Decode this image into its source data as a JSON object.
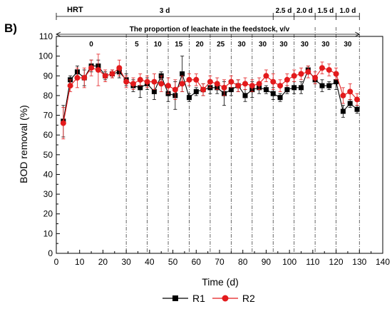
{
  "chart_data": {
    "type": "line",
    "panel_label": "B)",
    "xlabel": "Time (d)",
    "ylabel": "BOD removal (%)",
    "xlim": [
      0,
      140
    ],
    "ylim": [
      0,
      110
    ],
    "xticks": [
      0,
      10,
      20,
      30,
      40,
      50,
      60,
      70,
      80,
      90,
      100,
      110,
      120,
      130,
      140
    ],
    "yticks": [
      0,
      10,
      20,
      30,
      40,
      50,
      60,
      70,
      80,
      90,
      100,
      110
    ],
    "grid": false,
    "legend_position": "bottom-center",
    "hrt": {
      "label": "HRT",
      "segments": [
        {
          "label": "3 d",
          "start": 0,
          "end": 93
        },
        {
          "label": "2.5 d",
          "start": 93,
          "end": 102
        },
        {
          "label": "2.0 d",
          "start": 102,
          "end": 111
        },
        {
          "label": "1.5 d",
          "start": 111,
          "end": 120
        },
        {
          "label": "1.0 d",
          "start": 120,
          "end": 130
        }
      ]
    },
    "leachate": {
      "title": "The proportion of leachate in the feedstock, v/v",
      "period_boundaries": [
        30,
        39,
        48,
        57,
        66,
        75,
        84,
        93,
        102,
        111,
        120,
        130
      ],
      "periods": [
        {
          "label": "0",
          "start": 0,
          "end": 30
        },
        {
          "label": "5",
          "start": 30,
          "end": 39
        },
        {
          "label": "10",
          "start": 39,
          "end": 48
        },
        {
          "label": "15",
          "start": 48,
          "end": 57
        },
        {
          "label": "20",
          "start": 57,
          "end": 66
        },
        {
          "label": "25",
          "start": 66,
          "end": 75
        },
        {
          "label": "30",
          "start": 75,
          "end": 84
        },
        {
          "label": "30",
          "start": 84,
          "end": 93
        },
        {
          "label": "30",
          "start": 93,
          "end": 102
        },
        {
          "label": "30",
          "start": 102,
          "end": 111
        },
        {
          "label": "30",
          "start": 111,
          "end": 120
        },
        {
          "label": "30",
          "start": 120,
          "end": 130
        }
      ]
    },
    "series": [
      {
        "name": "R1",
        "color": "#000000",
        "marker": "square",
        "x": [
          3,
          6,
          9,
          12,
          15,
          18,
          21,
          24,
          27,
          30,
          33,
          36,
          39,
          42,
          45,
          48,
          51,
          54,
          57,
          60,
          63,
          66,
          69,
          72,
          75,
          78,
          81,
          84,
          87,
          90,
          93,
          96,
          99,
          102,
          105,
          108,
          111,
          114,
          117,
          120,
          123,
          126,
          129
        ],
        "y": [
          67,
          88,
          92,
          89,
          95,
          95,
          90,
          91,
          92,
          88,
          85,
          84,
          86,
          82,
          90,
          81,
          80,
          91,
          79,
          82,
          83,
          84,
          84,
          81,
          83,
          85,
          80,
          83,
          84,
          83,
          81,
          79,
          83,
          84,
          84,
          93,
          88,
          85,
          85,
          87,
          72,
          76,
          73
        ],
        "err": [
          8,
          2,
          3,
          4,
          3,
          3,
          2,
          2,
          3,
          3,
          3,
          5,
          3,
          4,
          2,
          4,
          7,
          9,
          2,
          2,
          3,
          3,
          3,
          6,
          3,
          3,
          3,
          4,
          3,
          2,
          3,
          2,
          2,
          3,
          3,
          2,
          2,
          3,
          2,
          4,
          3,
          2,
          2
        ]
      },
      {
        "name": "R2",
        "color": "#e31a1c",
        "marker": "circle",
        "x": [
          3,
          6,
          9,
          12,
          15,
          18,
          21,
          24,
          27,
          30,
          33,
          36,
          39,
          42,
          45,
          48,
          51,
          54,
          57,
          60,
          63,
          66,
          69,
          72,
          75,
          78,
          81,
          84,
          87,
          90,
          93,
          96,
          99,
          102,
          105,
          108,
          111,
          114,
          117,
          120,
          123,
          126,
          129
        ],
        "y": [
          66,
          85,
          89,
          89,
          94,
          93,
          90,
          91,
          94,
          87,
          86,
          88,
          87,
          87,
          86,
          85,
          83,
          86,
          88,
          88,
          83,
          87,
          86,
          84,
          87,
          85,
          86,
          85,
          86,
          90,
          87,
          85,
          88,
          90,
          91,
          92,
          89,
          94,
          93,
          91,
          80,
          82,
          78
        ],
        "err": [
          8,
          3,
          5,
          5,
          4,
          8,
          3,
          2,
          4,
          3,
          3,
          3,
          3,
          4,
          4,
          4,
          5,
          4,
          3,
          3,
          3,
          3,
          3,
          4,
          3,
          3,
          3,
          3,
          3,
          3,
          4,
          3,
          3,
          3,
          3,
          3,
          3,
          3,
          3,
          3,
          4,
          4,
          3
        ]
      }
    ]
  }
}
